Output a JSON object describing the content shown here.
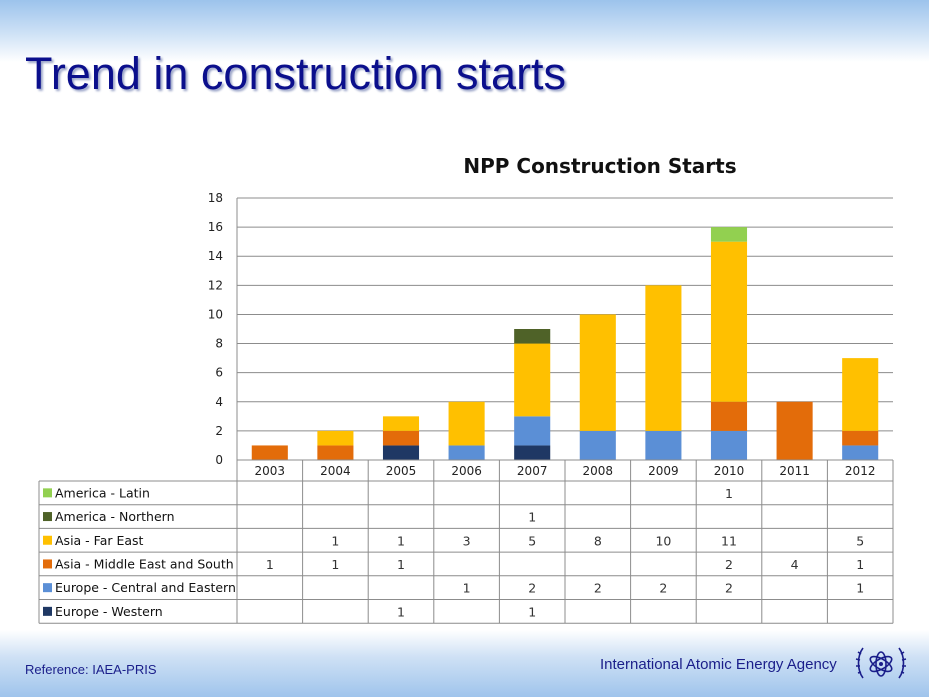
{
  "slide": {
    "title": "Trend in construction starts",
    "reference": "Reference: IAEA-PRIS",
    "agency": "International Atomic Energy Agency"
  },
  "colors": {
    "title": "#0b0f8c",
    "band": "#9cc3ec"
  },
  "chart_data": {
    "type": "bar",
    "stacked": true,
    "title": "NPP Construction Starts",
    "xlabel": "",
    "ylabel": "",
    "ylim": [
      0,
      18
    ],
    "yticks": [
      0,
      2,
      4,
      6,
      8,
      10,
      12,
      14,
      16,
      18
    ],
    "grid": true,
    "legend": "data-table-left",
    "categories": [
      "2003",
      "2004",
      "2005",
      "2006",
      "2007",
      "2008",
      "2009",
      "2010",
      "2011",
      "2012"
    ],
    "series": [
      {
        "name": "Europe - Western",
        "color": "#1f3864",
        "values": [
          0,
          0,
          1,
          0,
          1,
          0,
          0,
          0,
          0,
          0
        ]
      },
      {
        "name": "Europe - Central and Eastern",
        "color": "#5b8fd6",
        "values": [
          0,
          0,
          0,
          1,
          2,
          2,
          2,
          2,
          0,
          1
        ]
      },
      {
        "name": "Asia - Middle East and South",
        "color": "#e36c0a",
        "values": [
          1,
          1,
          1,
          0,
          0,
          0,
          0,
          2,
          4,
          1
        ]
      },
      {
        "name": "Asia - Far East",
        "color": "#ffc000",
        "values": [
          0,
          1,
          1,
          3,
          5,
          8,
          10,
          11,
          0,
          5
        ]
      },
      {
        "name": "America - Northern",
        "color": "#4f6228",
        "values": [
          0,
          0,
          0,
          0,
          1,
          0,
          0,
          0,
          0,
          0
        ]
      },
      {
        "name": "America - Latin",
        "color": "#92d050",
        "values": [
          0,
          0,
          0,
          0,
          0,
          0,
          0,
          1,
          0,
          0
        ]
      }
    ]
  }
}
